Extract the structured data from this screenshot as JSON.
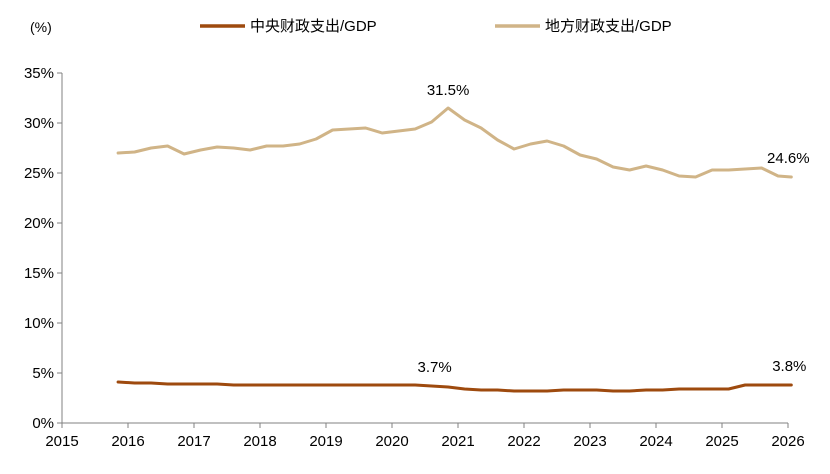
{
  "chart_data": {
    "type": "line",
    "unit_label": "(%)",
    "xlim": [
      2015,
      2026
    ],
    "ylim": [
      0,
      35
    ],
    "x_ticks": [
      "2015",
      "2016",
      "2017",
      "2018",
      "2019",
      "2020",
      "2021",
      "2022",
      "2023",
      "2024",
      "2025",
      "2026"
    ],
    "y_ticks": [
      "0%",
      "5%",
      "10%",
      "15%",
      "20%",
      "25%",
      "30%",
      "35%"
    ],
    "grid": false,
    "legend_position": "top",
    "series": [
      {
        "name": "中央财政支出/GDP",
        "color": "#9E4A0E",
        "x": [
          2015.85,
          2016.1,
          2016.35,
          2016.6,
          2016.85,
          2017.1,
          2017.35,
          2017.6,
          2017.85,
          2018.1,
          2018.35,
          2018.6,
          2018.85,
          2019.1,
          2019.35,
          2019.6,
          2019.85,
          2020.1,
          2020.35,
          2020.6,
          2020.85,
          2021.1,
          2021.35,
          2021.6,
          2021.85,
          2022.1,
          2022.35,
          2022.6,
          2022.85,
          2023.1,
          2023.35,
          2023.6,
          2023.85,
          2024.1,
          2024.35,
          2024.6,
          2024.85,
          2025.1,
          2025.35,
          2025.6,
          2025.85,
          2026.05
        ],
        "values": [
          4.1,
          4.0,
          4.0,
          3.9,
          3.9,
          3.9,
          3.9,
          3.8,
          3.8,
          3.8,
          3.8,
          3.8,
          3.8,
          3.8,
          3.8,
          3.8,
          3.8,
          3.8,
          3.8,
          3.7,
          3.6,
          3.4,
          3.3,
          3.3,
          3.2,
          3.2,
          3.2,
          3.3,
          3.3,
          3.3,
          3.2,
          3.2,
          3.3,
          3.3,
          3.4,
          3.4,
          3.4,
          3.4,
          3.8,
          3.8,
          3.8,
          3.8
        ]
      },
      {
        "name": "地方财政支出/GDP",
        "color": "#D0B487",
        "x": [
          2015.85,
          2016.1,
          2016.35,
          2016.6,
          2016.85,
          2017.1,
          2017.35,
          2017.6,
          2017.85,
          2018.1,
          2018.35,
          2018.6,
          2018.85,
          2019.1,
          2019.35,
          2019.6,
          2019.85,
          2020.1,
          2020.35,
          2020.6,
          2020.85,
          2021.1,
          2021.35,
          2021.6,
          2021.85,
          2022.1,
          2022.35,
          2022.6,
          2022.85,
          2023.1,
          2023.35,
          2023.6,
          2023.85,
          2024.1,
          2024.35,
          2024.6,
          2024.85,
          2025.1,
          2025.35,
          2025.6,
          2025.85,
          2026.05
        ],
        "values": [
          27.0,
          27.1,
          27.5,
          27.7,
          26.9,
          27.3,
          27.6,
          27.5,
          27.3,
          27.7,
          27.7,
          27.9,
          28.4,
          29.3,
          29.4,
          29.5,
          29.0,
          29.2,
          29.4,
          30.1,
          31.5,
          30.3,
          29.5,
          28.3,
          27.4,
          27.9,
          28.2,
          27.7,
          26.8,
          26.4,
          25.6,
          25.3,
          25.7,
          25.3,
          24.7,
          24.6,
          25.3,
          25.3,
          25.4,
          25.5,
          24.7,
          24.6
        ]
      }
    ],
    "annotations": [
      {
        "text": "31.5%",
        "x": 2020.85,
        "y": 31.5
      },
      {
        "text": "24.6%",
        "x": 2026.05,
        "y": 24.6
      },
      {
        "text": "3.7%",
        "x": 2020.6,
        "y": 3.7
      },
      {
        "text": "3.8%",
        "x": 2026.05,
        "y": 3.8
      }
    ]
  }
}
